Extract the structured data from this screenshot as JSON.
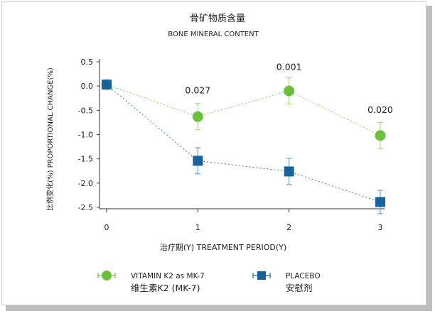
{
  "chart_data": {
    "type": "line",
    "title": "骨矿物质含量",
    "subtitle": "BONE MINERAL CONTENT",
    "xlabel": "治疗期(Y)  TREATMENT PERIOD(Y)",
    "ylabel": "比例变化(%)  PROPORTIONAL CHANGE(%)",
    "x": [
      0,
      1,
      2,
      3
    ],
    "x_ticks": [
      "0",
      "1",
      "2",
      "3"
    ],
    "ylim": [
      -2.5,
      0.5
    ],
    "y_ticks": [
      "0.5",
      "0.0",
      "-0.5",
      "-1.0",
      "-1.5",
      "-2.0",
      "-2.5"
    ],
    "y_tick_values": [
      0.5,
      0.0,
      -0.5,
      -1.0,
      -1.5,
      -2.0,
      -2.5
    ],
    "grid": false,
    "series": [
      {
        "name": "VITAMIN K2 as MK-7",
        "name_cn": "维生素K2 (MK-7)",
        "color": "#6cbf3a",
        "marker": "circle",
        "values": [
          0.03,
          -0.63,
          -0.1,
          -1.02
        ],
        "err": [
          0,
          0.27,
          0.27,
          0.27
        ]
      },
      {
        "name": "PLACEBO",
        "name_cn": "安慰剂",
        "color": "#17649a",
        "marker": "square",
        "values": [
          0.03,
          -1.54,
          -1.76,
          -2.39
        ],
        "err": [
          0,
          0.27,
          0.27,
          0.24
        ]
      }
    ],
    "annotations": [
      {
        "x": 1,
        "text": "0.027",
        "y": -0.15
      },
      {
        "x": 2,
        "text": "0.001",
        "y": 0.33
      },
      {
        "x": 3,
        "text": "0.020",
        "y": -0.55
      }
    ],
    "legend_position": "bottom"
  }
}
